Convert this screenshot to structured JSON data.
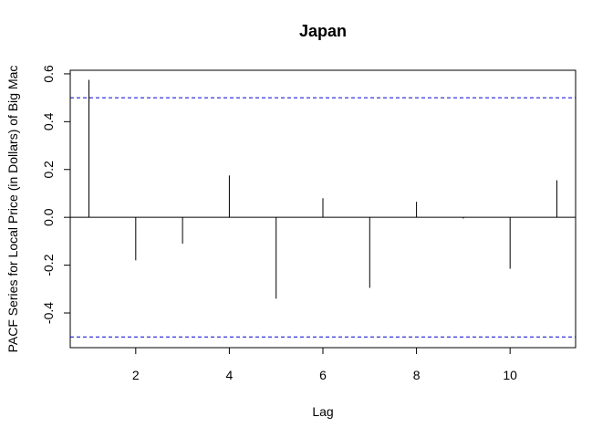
{
  "chart_data": {
    "type": "bar",
    "title": "Japan",
    "xlabel": "Lag",
    "ylabel": "PACF Series for Local Price (in Dollars) of Big Mac",
    "x": [
      1,
      2,
      3,
      4,
      5,
      6,
      7,
      8,
      9,
      10,
      11
    ],
    "values": [
      0.575,
      -0.18,
      -0.11,
      0.175,
      -0.34,
      0.08,
      -0.295,
      0.065,
      -0.005,
      -0.215,
      0.155
    ],
    "xlim": [
      0.6,
      11.4
    ],
    "ylim": [
      -0.545,
      0.615
    ],
    "xticks": [
      2,
      4,
      6,
      8,
      10
    ],
    "xtick_labels": [
      "2",
      "4",
      "6",
      "8",
      "10"
    ],
    "yticks": [
      -0.4,
      -0.2,
      0.0,
      0.2,
      0.4,
      0.6
    ],
    "ytick_labels": [
      "-0.4",
      "-0.2",
      "0.0",
      "0.2",
      "0.4",
      "0.6"
    ],
    "confidence_bounds": [
      0.5,
      -0.5
    ],
    "zero_line": 0.0,
    "grid": false,
    "colors": {
      "bars": "#000000",
      "bounds": "#0000cd",
      "frame": "#000000"
    }
  }
}
